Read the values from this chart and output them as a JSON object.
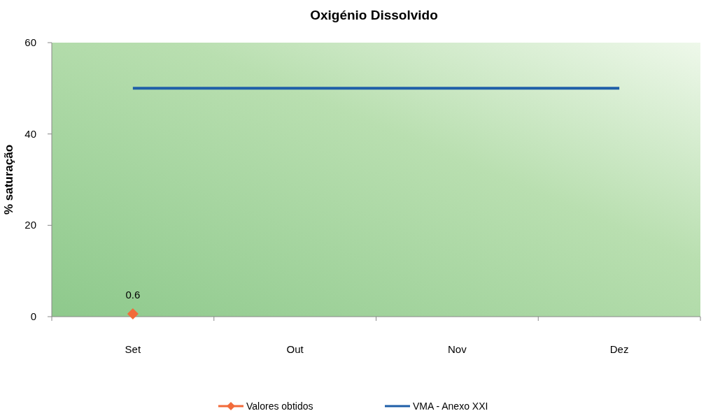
{
  "chart_data": {
    "type": "line",
    "title": "Oxigénio Dissolvido",
    "ylabel": "% saturação",
    "categories": [
      "Set",
      "Out",
      "Nov",
      "Dez"
    ],
    "series": [
      {
        "name": "Valores obtidos",
        "color": "#f26b3a",
        "values": [
          0.6,
          null,
          null,
          null
        ],
        "marker": "diamond",
        "value_labels": [
          "0.6",
          null,
          null,
          null
        ]
      },
      {
        "name": "VMA - Anexo XXI",
        "color": "#1f5fa8",
        "values": [
          50,
          50,
          50,
          50
        ],
        "marker": "none"
      }
    ],
    "ylim": [
      0,
      60
    ],
    "yticks": [
      0,
      20,
      40,
      60
    ],
    "legend": "bottom"
  }
}
